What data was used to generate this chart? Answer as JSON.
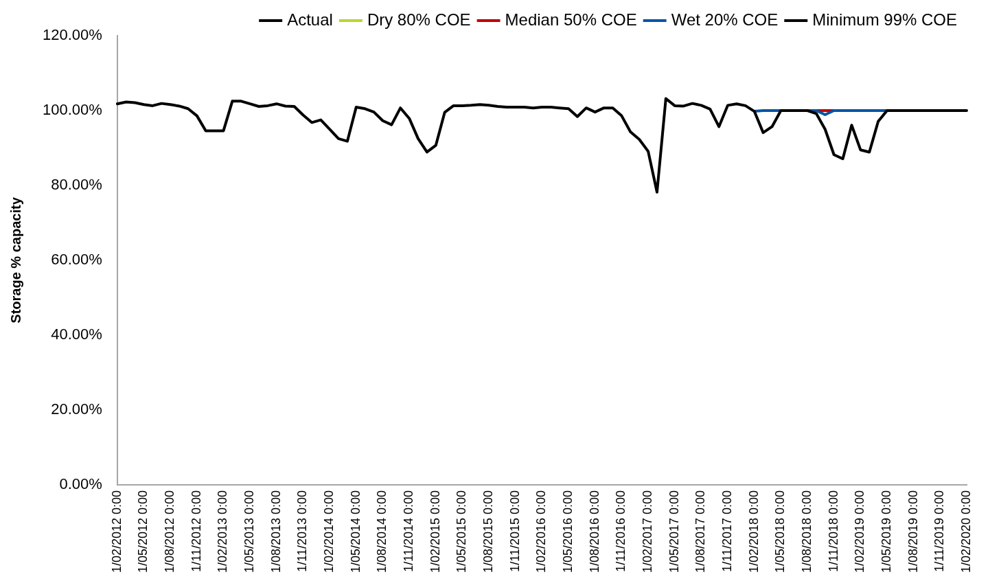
{
  "chart_data": {
    "type": "line",
    "ylabel": "Storage % capacity",
    "categories": [
      "1/02/2012 0:00",
      null,
      null,
      "1/05/2012 0:00",
      null,
      null,
      "1/08/2012 0:00",
      null,
      null,
      "1/11/2012 0:00",
      null,
      null,
      "1/02/2013 0:00",
      null,
      null,
      "1/05/2013 0:00",
      null,
      null,
      "1/08/2013 0:00",
      null,
      null,
      "1/11/2013 0:00",
      null,
      null,
      "1/02/2014 0:00",
      null,
      null,
      "1/05/2014 0:00",
      null,
      null,
      "1/08/2014 0:00",
      null,
      null,
      "1/11/2014 0:00",
      null,
      null,
      "1/02/2015 0:00",
      null,
      null,
      "1/05/2015 0:00",
      null,
      null,
      "1/08/2015 0:00",
      null,
      null,
      "1/11/2015 0:00",
      null,
      null,
      "1/02/2016 0:00",
      null,
      null,
      "1/05/2016 0:00",
      null,
      null,
      "1/08/2016 0:00",
      null,
      null,
      "1/11/2016 0:00",
      null,
      null,
      "1/02/2017 0:00",
      null,
      null,
      "1/05/2017 0:00",
      null,
      null,
      "1/08/2017 0:00",
      null,
      null,
      "1/11/2017 0:00",
      null,
      null,
      "1/02/2018 0:00",
      null,
      null,
      "1/05/2018 0:00",
      null,
      null,
      "1/08/2018 0:00",
      null,
      null,
      "1/11/2018 0:00",
      null,
      null,
      "1/02/2019 0:00",
      null,
      null,
      "1/05/2019 0:00",
      null,
      null,
      "1/08/2019 0:00",
      null,
      null,
      "1/11/2019 0:00",
      null,
      null,
      "1/02/2020 0:00"
    ],
    "series": [
      {
        "name": "Actual",
        "color": "#000000",
        "values": [
          101.8,
          102.3,
          102.1,
          101.6,
          101.3,
          101.9,
          101.6,
          101.2,
          100.5,
          98.6,
          94.6,
          94.6,
          94.6,
          102.5,
          102.5,
          101.8,
          101.1,
          101.3,
          101.8,
          101.2,
          101.1,
          98.8,
          96.8,
          97.5,
          95.0,
          92.5,
          91.8,
          100.9,
          100.5,
          99.6,
          97.3,
          96.2,
          100.7,
          97.9,
          92.5,
          88.9,
          90.7,
          99.5,
          101.3,
          101.3,
          101.4,
          101.6,
          101.4,
          101.1,
          100.9,
          100.9,
          100.9,
          100.7,
          100.9,
          100.9,
          100.7,
          100.5,
          98.4,
          100.7,
          99.6,
          100.7,
          100.7,
          98.6,
          94.3,
          92.3,
          89.1,
          78.2,
          103.2,
          101.3,
          101.2,
          101.9,
          101.4,
          100.4,
          95.7,
          101.4,
          101.8,
          101.3,
          99.8,
          null,
          null,
          null,
          null,
          null,
          null,
          null,
          null,
          null,
          null,
          null,
          null,
          null,
          null,
          null,
          null,
          null,
          null,
          null,
          null,
          null,
          null,
          null,
          null
        ]
      },
      {
        "name": "Dry 80% COE",
        "color": "#bcd42e",
        "values": [
          null,
          null,
          null,
          null,
          null,
          null,
          null,
          null,
          null,
          null,
          null,
          null,
          null,
          null,
          null,
          null,
          null,
          null,
          null,
          null,
          null,
          null,
          null,
          null,
          null,
          null,
          null,
          null,
          null,
          null,
          null,
          null,
          null,
          null,
          null,
          null,
          null,
          null,
          null,
          null,
          null,
          null,
          null,
          null,
          null,
          null,
          null,
          null,
          null,
          null,
          null,
          null,
          null,
          null,
          null,
          null,
          null,
          null,
          null,
          null,
          null,
          null,
          null,
          null,
          null,
          null,
          null,
          null,
          null,
          null,
          null,
          null,
          null,
          null,
          null,
          null,
          null,
          null,
          null,
          null,
          null,
          null,
          null,
          null,
          null,
          null,
          null,
          null,
          null,
          null,
          null,
          null,
          null,
          null,
          null,
          null,
          null
        ]
      },
      {
        "name": "Median 50% COE",
        "color": "#c00000",
        "values": [
          null,
          null,
          null,
          null,
          null,
          null,
          null,
          null,
          null,
          null,
          null,
          null,
          null,
          null,
          null,
          null,
          null,
          null,
          null,
          null,
          null,
          null,
          null,
          null,
          null,
          null,
          null,
          null,
          null,
          null,
          null,
          null,
          null,
          null,
          null,
          null,
          null,
          null,
          null,
          null,
          null,
          null,
          null,
          null,
          null,
          null,
          null,
          null,
          null,
          null,
          null,
          null,
          null,
          null,
          null,
          null,
          null,
          null,
          null,
          null,
          null,
          null,
          null,
          null,
          null,
          null,
          null,
          null,
          null,
          null,
          null,
          null,
          null,
          null,
          null,
          null,
          null,
          null,
          null,
          100,
          100,
          100,
          null,
          null,
          null,
          null,
          null,
          null,
          null,
          null,
          null,
          null,
          null,
          null,
          null,
          null,
          null
        ]
      },
      {
        "name": "Wet 20% COE",
        "color": "#0055a5",
        "values": [
          null,
          null,
          null,
          null,
          null,
          null,
          null,
          null,
          null,
          null,
          null,
          null,
          null,
          null,
          null,
          null,
          null,
          null,
          null,
          null,
          null,
          null,
          null,
          null,
          null,
          null,
          null,
          null,
          null,
          null,
          null,
          null,
          null,
          null,
          null,
          null,
          null,
          null,
          null,
          null,
          null,
          null,
          null,
          null,
          null,
          null,
          null,
          null,
          null,
          null,
          null,
          null,
          null,
          null,
          null,
          null,
          null,
          null,
          null,
          null,
          null,
          null,
          null,
          null,
          null,
          null,
          null,
          null,
          null,
          null,
          null,
          null,
          99.8,
          100,
          100,
          100,
          null,
          null,
          100,
          100,
          98.9,
          100,
          100,
          100,
          100,
          100,
          100,
          100,
          null,
          null,
          null,
          null,
          null,
          null,
          null,
          null,
          null
        ]
      },
      {
        "name": "Minimum 99% COE",
        "color": "#000000",
        "values": [
          null,
          null,
          null,
          null,
          null,
          null,
          null,
          null,
          null,
          null,
          null,
          null,
          null,
          null,
          null,
          null,
          null,
          null,
          null,
          null,
          null,
          null,
          null,
          null,
          null,
          null,
          null,
          null,
          null,
          null,
          null,
          null,
          null,
          null,
          null,
          null,
          null,
          null,
          null,
          null,
          null,
          null,
          null,
          null,
          null,
          null,
          null,
          null,
          null,
          null,
          null,
          null,
          null,
          null,
          null,
          null,
          null,
          null,
          null,
          null,
          null,
          null,
          null,
          null,
          null,
          null,
          null,
          null,
          null,
          null,
          null,
          null,
          99.8,
          94.1,
          95.7,
          100,
          100,
          100,
          100,
          99.2,
          95.0,
          88.2,
          87.1,
          96.1,
          89.5,
          88.9,
          97.1,
          100,
          100,
          100,
          100,
          100,
          100,
          100,
          100,
          100,
          100
        ]
      }
    ],
    "ylim": [
      0,
      120
    ],
    "yticks": [
      {
        "value": 0,
        "label": "0.00%"
      },
      {
        "value": 20,
        "label": "20.00%"
      },
      {
        "value": 40,
        "label": "40.00%"
      },
      {
        "value": 60,
        "label": "60.00%"
      },
      {
        "value": 80,
        "label": "80.00%"
      },
      {
        "value": 100,
        "label": "100.00%"
      },
      {
        "value": 120,
        "label": "120.00%"
      }
    ],
    "grid": false,
    "legend": "top right",
    "marker": "none",
    "line_style": "solid"
  }
}
